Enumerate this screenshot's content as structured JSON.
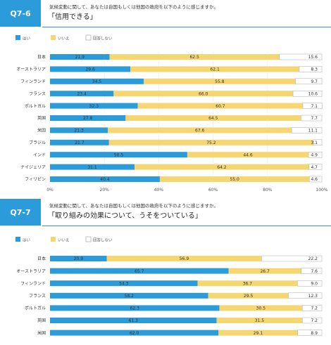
{
  "colors": {
    "yes": "#2b9bd9",
    "no": "#f6d670",
    "noans": "#ffffff",
    "header": "#2b9bd9"
  },
  "legend": {
    "yes": "はい",
    "no": "いいえ",
    "noans": "回答しない"
  },
  "q76": {
    "id": "Q7-6",
    "subtitle": "気候変動に関して、あなたは自国もしくは他国の政府を以下のように感じますか。",
    "title": "「信用できる」"
  },
  "q77": {
    "id": "Q7-7",
    "subtitle": "気候変動に関して、あなたは自国もしくは他国の政府を以下のように感じますか。",
    "title": "「取り組みの効果について、うそをついている」"
  },
  "chart_data": [
    {
      "type": "bar",
      "orientation": "horizontal",
      "stacked": true,
      "title": "「信用できる」",
      "categories": [
        "日本",
        "オーストラリア",
        "フィンランド",
        "フランス",
        "ポルトガル",
        "英国",
        "米国",
        "ブラジル",
        "インド",
        "ナイジェリア",
        "フィリピン"
      ],
      "series": [
        {
          "name": "はい",
          "values": [
            21.9,
            29.6,
            34.5,
            23.4,
            32.3,
            27.8,
            21.3,
            21.7,
            50.5,
            31.1,
            40.4
          ]
        },
        {
          "name": "いいえ",
          "values": [
            62.5,
            62.1,
            55.8,
            66.0,
            60.7,
            64.5,
            67.6,
            75.2,
            44.6,
            64.2,
            55.0
          ]
        },
        {
          "name": "回答しない",
          "values": [
            15.6,
            8.3,
            9.7,
            10.6,
            7.1,
            7.7,
            11.1,
            3.1,
            4.9,
            4.7,
            4.6
          ]
        }
      ],
      "xlim": [
        0,
        100
      ],
      "xticks": [
        "0%",
        "20%",
        "40%",
        "60%",
        "80%",
        "100%"
      ]
    },
    {
      "type": "bar",
      "orientation": "horizontal",
      "stacked": true,
      "title": "「取り組みの効果について、うそをついている」",
      "categories": [
        "日本",
        "オーストラリア",
        "フィンランド",
        "フランス",
        "ポルトガル",
        "英国",
        "米国"
      ],
      "series": [
        {
          "name": "はい",
          "values": [
            20.9,
            65.7,
            54.3,
            58.2,
            62.3,
            61.3,
            62.0
          ]
        },
        {
          "name": "いいえ",
          "values": [
            56.9,
            26.7,
            36.7,
            29.5,
            30.5,
            31.5,
            29.1
          ]
        },
        {
          "name": "回答しない",
          "values": [
            22.2,
            7.6,
            9.0,
            12.3,
            7.2,
            7.2,
            8.9
          ]
        }
      ],
      "xlim": [
        0,
        100
      ]
    }
  ]
}
